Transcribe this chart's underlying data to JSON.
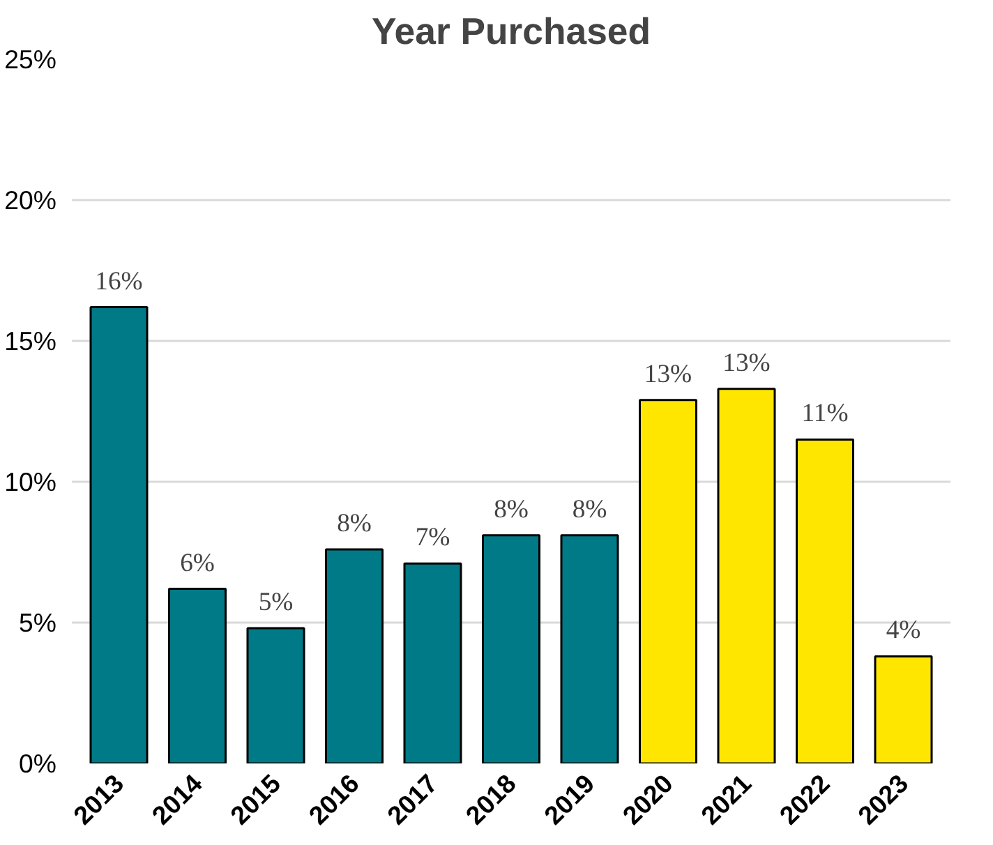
{
  "chart_data": {
    "type": "bar",
    "title": "Year Purchased",
    "categories": [
      "2013",
      "2014",
      "2015",
      "2016",
      "2017",
      "2018",
      "2019",
      "2020",
      "2021",
      "2022",
      "2023"
    ],
    "values": [
      16.2,
      6.2,
      4.8,
      7.6,
      7.1,
      8.1,
      8.1,
      12.9,
      13.3,
      11.5,
      3.8
    ],
    "colors": [
      "#007a87",
      "#007a87",
      "#007a87",
      "#007a87",
      "#007a87",
      "#007a87",
      "#007a87",
      "#ffe600",
      "#ffe600",
      "#ffe600",
      "#ffe600"
    ],
    "value_labels": [
      "16%",
      "6%",
      "5%",
      "8%",
      "7%",
      "8%",
      "8%",
      "13%",
      "13%",
      "11%",
      "4%"
    ],
    "ylim": [
      0,
      25
    ],
    "yticks": [
      {
        "value": 0,
        "label": "0%"
      },
      {
        "value": 5,
        "label": "5%"
      },
      {
        "value": 10,
        "label": "10%"
      },
      {
        "value": 15,
        "label": "15%"
      },
      {
        "value": 20,
        "label": "20%"
      },
      {
        "value": 25,
        "label": "25%"
      }
    ],
    "grid": "y"
  }
}
